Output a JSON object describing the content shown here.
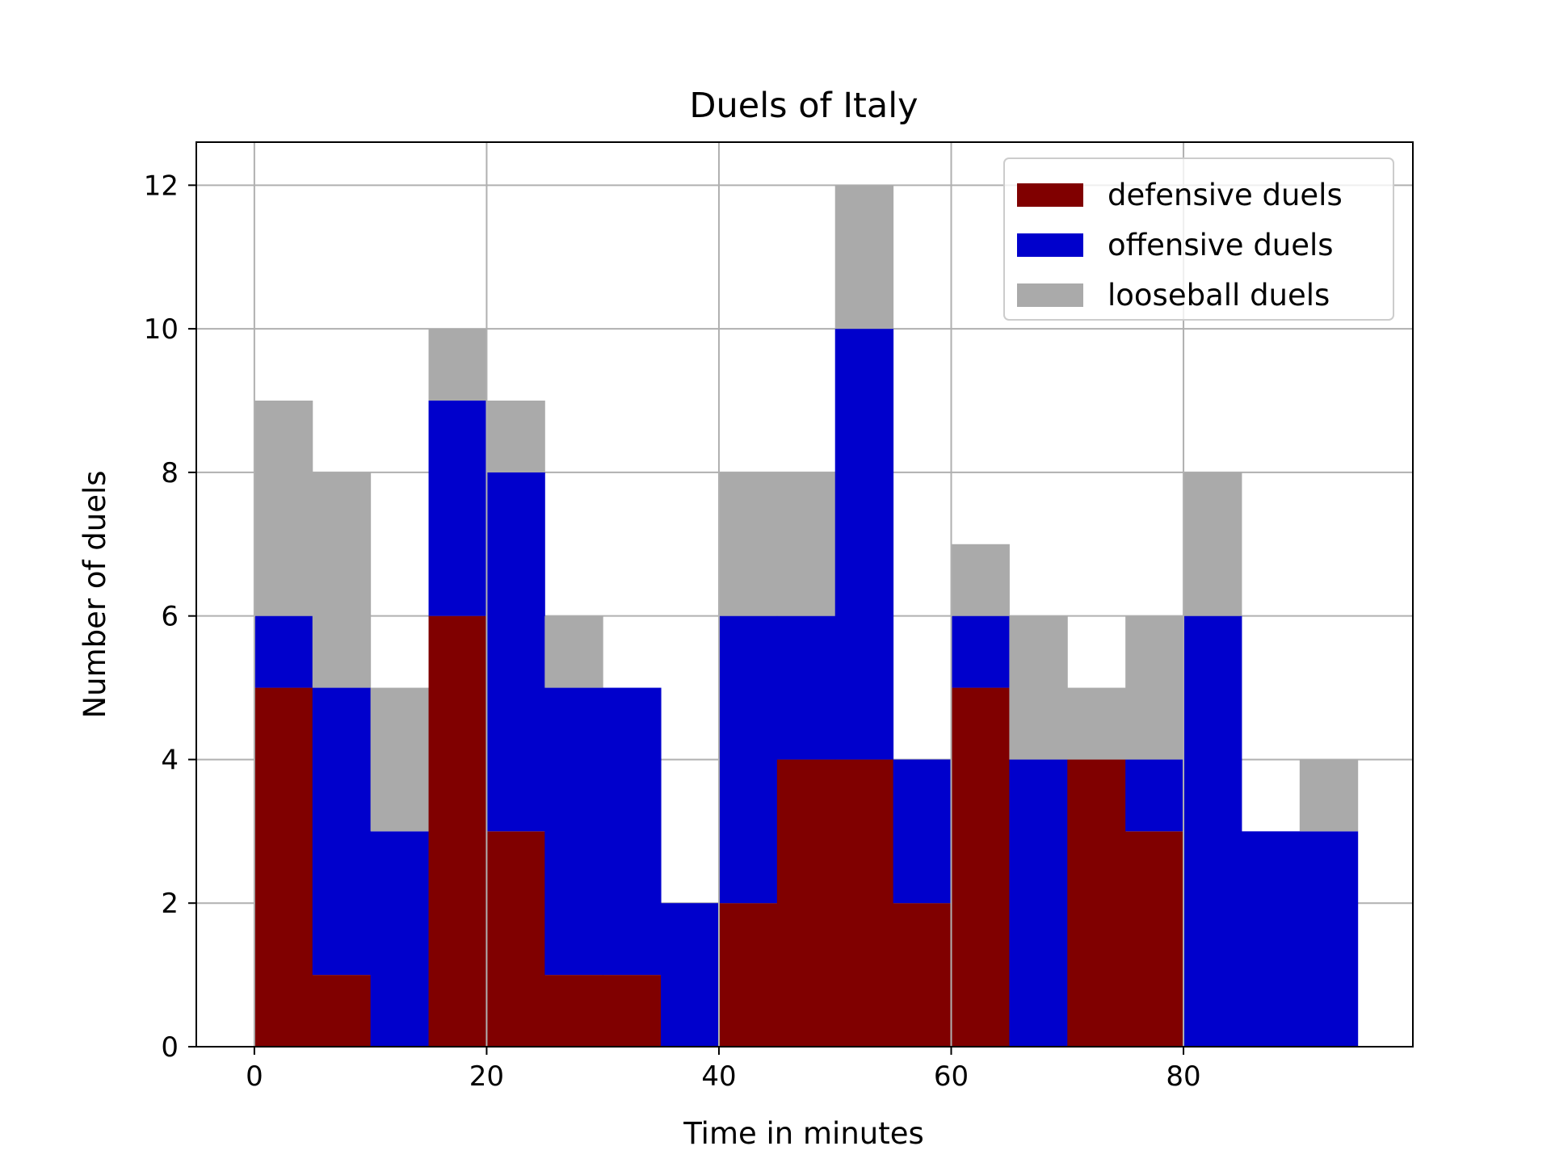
{
  "chart_data": {
    "type": "bar",
    "stacked": true,
    "title": "Duels of Italy",
    "xlabel": "Time in minutes",
    "ylabel": "Number of duels",
    "bin_width": 5,
    "x": [
      0,
      5,
      10,
      15,
      20,
      25,
      30,
      35,
      40,
      45,
      50,
      55,
      60,
      65,
      70,
      75,
      80,
      85,
      90
    ],
    "series": [
      {
        "name": "defensive duels",
        "color": "#800000",
        "values": [
          5,
          1,
          0,
          6,
          3,
          1,
          1,
          0,
          2,
          4,
          4,
          2,
          5,
          0,
          4,
          3,
          0,
          0,
          0
        ]
      },
      {
        "name": "offensive duels",
        "color": "#0000cc",
        "values": [
          1,
          4,
          3,
          3,
          5,
          4,
          4,
          2,
          4,
          2,
          6,
          2,
          1,
          4,
          0,
          1,
          6,
          3,
          3
        ]
      },
      {
        "name": "looseball duels",
        "color": "#aaaaaa",
        "values": [
          3,
          3,
          2,
          1,
          1,
          1,
          0,
          0,
          2,
          2,
          2,
          0,
          1,
          2,
          1,
          2,
          2,
          0,
          1
        ]
      }
    ],
    "xlim": [
      -5,
      99.75
    ],
    "ylim": [
      0,
      12.6
    ],
    "xticks": [
      0,
      20,
      40,
      60,
      80
    ],
    "yticks": [
      0,
      2,
      4,
      6,
      8,
      10,
      12
    ],
    "grid": true,
    "legend_position": "top-right"
  }
}
